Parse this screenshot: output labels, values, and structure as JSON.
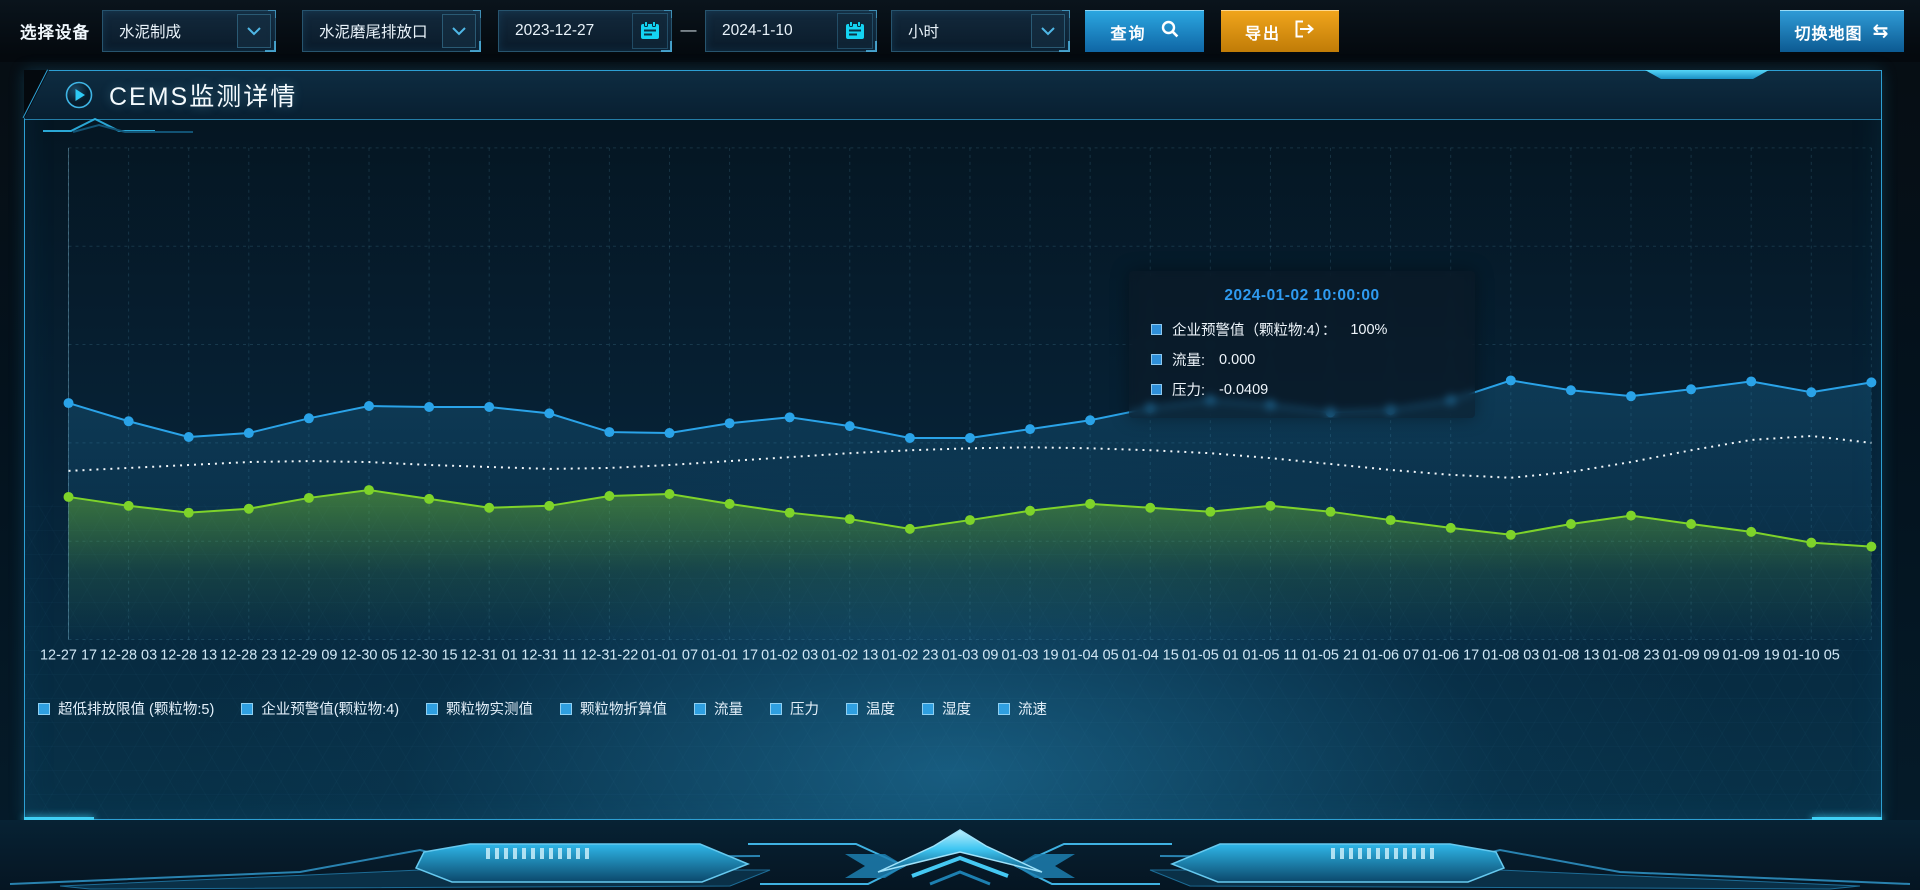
{
  "toolbar": {
    "device_label": "选择设备",
    "selects": [
      {
        "value": "水泥制成"
      },
      {
        "value": "水泥磨尾排放口"
      },
      {
        "value": "小时"
      }
    ],
    "date_start": "2023-12-27",
    "date_separator": "—",
    "date_end": "2024-1-10",
    "query_label": "查询",
    "export_label": "导出",
    "switch_map_label": "切换地图"
  },
  "panel": {
    "title": "CEMS监测详情"
  },
  "tooltip": {
    "title": "2024-01-02 10:00:00",
    "rows": [
      {
        "label": "企业预警值（颗粒物:4）：",
        "value": "100%"
      },
      {
        "label": "流量:",
        "value": "0.000"
      },
      {
        "label": "压力:",
        "value": "-0.0409"
      }
    ]
  },
  "legend": {
    "marker_color": "#2f9fe0",
    "items": [
      "超低排放限值 (颗粒物:5)",
      "企业预警值(颗粒物:4)",
      "颗粒物实测值",
      "颗粒物折算值",
      "流量",
      "压力",
      "温度",
      "湿度",
      "流速"
    ]
  },
  "chart_data": {
    "type": "line",
    "title": "",
    "xlabel": "",
    "ylabel": "",
    "ylim": [
      0,
      100
    ],
    "y_units": "percent of plot height (no y-axis labels shown)",
    "grid": "dashed, no y tick labels",
    "legend_position": "bottom",
    "categories": [
      "12-27 17",
      "12-28 03",
      "12-28 13",
      "12-28 23",
      "12-29 09",
      "12-30 05",
      "12-30 15",
      "12-31 01",
      "12-31 11",
      "12-31-22",
      "01-01 07",
      "01-01 17",
      "01-02 03",
      "01-02 13",
      "01-02 23",
      "01-03 09",
      "01-03 19",
      "01-04 05",
      "01-04 15",
      "01-05 01",
      "01-05 11",
      "01-05 21",
      "01-06 07",
      "01-06 17",
      "01-08 03",
      "01-08 13",
      "01-08 23",
      "01-09 09",
      "01-09 19",
      "01-10 05"
    ],
    "note": "series contain one extra unlabeled point extending to the right plot edge",
    "series": [
      {
        "name": "压力",
        "color": "#2aa3e8",
        "line_style": "solid",
        "markers": true,
        "area_fill": "gBlue",
        "values": [
          48.1,
          44.4,
          41.2,
          42.0,
          45.0,
          47.5,
          47.3,
          47.3,
          46.0,
          42.2,
          42.0,
          44.0,
          45.2,
          43.4,
          41.0,
          41.0,
          42.8,
          44.6,
          47.1,
          48.7,
          47.7,
          46.2,
          46.7,
          48.7,
          52.7,
          50.7,
          49.5,
          50.9,
          52.5,
          50.3,
          52.3
        ]
      },
      {
        "name": "企业预警值(颗粒物:4)",
        "color": "#f2f7fa",
        "line_style": "dotted",
        "markers": false,
        "area_fill": null,
        "values": [
          34.3,
          34.9,
          35.5,
          36.1,
          36.3,
          36.1,
          35.5,
          35.1,
          34.7,
          34.9,
          35.5,
          36.3,
          37.1,
          37.9,
          38.5,
          38.9,
          39.1,
          38.9,
          38.5,
          37.9,
          36.9,
          35.7,
          34.5,
          33.5,
          32.9,
          34.1,
          36.1,
          38.5,
          40.6,
          41.4,
          40.0
        ]
      },
      {
        "name": "流量",
        "color": "#7ed32a",
        "line_style": "solid",
        "markers": true,
        "area_fill": "gGreen",
        "values": [
          29.0,
          27.2,
          25.8,
          26.6,
          28.8,
          30.4,
          28.6,
          26.8,
          27.2,
          29.2,
          29.6,
          27.6,
          25.8,
          24.5,
          22.5,
          24.3,
          26.2,
          27.6,
          26.8,
          26.0,
          27.2,
          26.0,
          24.3,
          22.7,
          21.3,
          23.5,
          25.2,
          23.5,
          21.9,
          19.7,
          18.9
        ]
      }
    ]
  },
  "colors": {
    "accent": "#2fb7e9",
    "panel_border": "#2d9fd3",
    "query_button": "#1d8dcb",
    "export_button": "#dd9212",
    "tooltip_title": "#2f9bf0"
  }
}
